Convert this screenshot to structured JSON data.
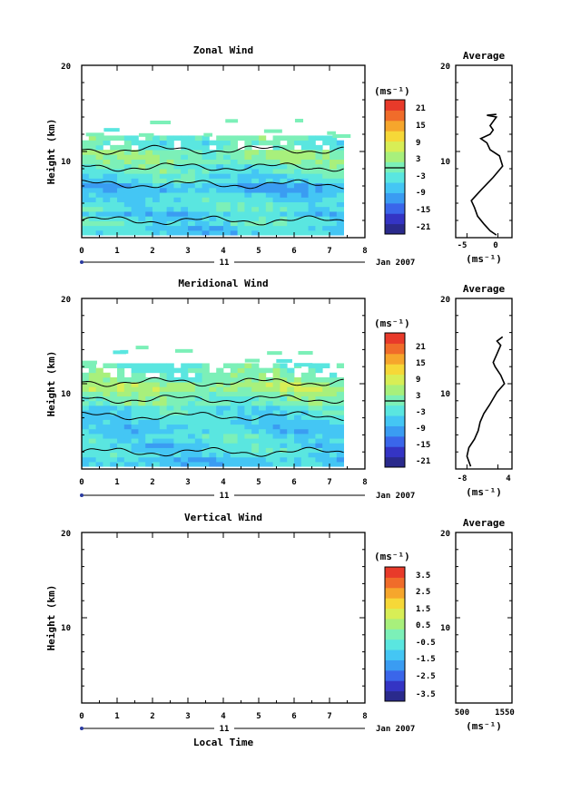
{
  "palette": [
    "#2a2a8c",
    "#3434c4",
    "#3a66ea",
    "#3a9cf2",
    "#44c6f4",
    "#5ae6e0",
    "#7cf0b8",
    "#a8f07c",
    "#d8ee56",
    "#f6d838",
    "#f6a62c",
    "#f06c2a",
    "#e83a2a"
  ],
  "contour_color": "#000000",
  "date_label": "Jan 2007",
  "day_label": "11",
  "x_axis_label": "Local Time",
  "panels": [
    {
      "title": "Zonal Wind",
      "ylabel": "Height (km)",
      "unit_label": "(ms⁻¹)",
      "colorbar_ticks": [
        "21",
        "15",
        "9",
        "3",
        "-3",
        "-9",
        "-15",
        "-21"
      ],
      "colorbar_marker": "3",
      "avg_title": "Average",
      "avg_unit": "(ms⁻¹)",
      "avg_xticks": [
        "-5",
        "0"
      ]
    },
    {
      "title": "Meridional Wind",
      "ylabel": "Height (km)",
      "unit_label": "(ms⁻¹)",
      "colorbar_ticks": [
        "21",
        "15",
        "9",
        "3",
        "-3",
        "-9",
        "-15",
        "-21"
      ],
      "colorbar_marker": "3",
      "avg_title": "Average",
      "avg_unit": "(ms⁻¹)",
      "avg_xticks": [
        "-8",
        "4"
      ]
    },
    {
      "title": "Vertical Wind",
      "ylabel": "Height (km)",
      "unit_label": "(ms⁻¹)",
      "colorbar_ticks": [
        "3.5",
        "2.5",
        "1.5",
        "0.5",
        "-0.5",
        "-1.5",
        "-2.5",
        "-3.5"
      ],
      "avg_title": "Average",
      "avg_unit": "(ms⁻¹)",
      "avg_xticks": [
        "500",
        "1550"
      ]
    }
  ],
  "chart_data": [
    {
      "type": "heatmap",
      "title": "Zonal Wind",
      "xlabel": "",
      "ylabel": "Height (km)",
      "xlim": [
        0,
        8
      ],
      "ylim": [
        0,
        20
      ],
      "xticks": [
        "0",
        "1",
        "2",
        "3",
        "4",
        "5",
        "6",
        "7",
        "8"
      ],
      "yticks": [
        "20",
        "10"
      ],
      "x_extent": [
        0,
        7.4
      ],
      "y_extent": [
        0.3,
        11.5
      ],
      "y_levels": [
        0.5,
        1.5,
        2.5,
        3.5,
        4.5,
        5.5,
        6.5,
        7.5,
        8.5,
        9.5,
        10.5,
        11.5
      ],
      "values": [
        -6,
        -4,
        -7,
        -3,
        -5,
        -8,
        -4,
        -2,
        0,
        1,
        -3,
        -1
      ],
      "colorbar_range": [
        -24,
        24
      ],
      "average_profile": {
        "xlim": [
          -7,
          2
        ],
        "ylim": [
          0,
          20
        ],
        "x": [
          -0.5,
          -1.5,
          -2.5,
          -3.5,
          -4,
          -4.5,
          -3,
          -1,
          0.5,
          0,
          -1.5,
          -2,
          -3,
          -1.5,
          -1,
          -1.5,
          -1,
          -0.5,
          -2,
          -0.5
        ],
        "y": [
          0.3,
          0.8,
          1.6,
          2.5,
          3.5,
          4.3,
          5.5,
          7,
          8.3,
          9.5,
          10.2,
          11,
          11.5,
          12,
          12.5,
          13,
          13.5,
          14,
          14.2,
          14.3
        ]
      }
    },
    {
      "type": "heatmap",
      "title": "Meridional Wind",
      "xlabel": "",
      "ylabel": "Height (km)",
      "xlim": [
        0,
        8
      ],
      "ylim": [
        0,
        20
      ],
      "xticks": [
        "0",
        "1",
        "2",
        "3",
        "4",
        "5",
        "6",
        "7",
        "8"
      ],
      "yticks": [
        "20",
        "10"
      ],
      "x_extent": [
        0,
        7.4
      ],
      "y_extent": [
        0.3,
        12
      ],
      "y_levels": [
        0.5,
        1.5,
        2.5,
        3.5,
        4.5,
        5.5,
        6.5,
        7.5,
        8.5,
        9.5,
        10.5,
        11.5
      ],
      "values": [
        -7,
        -5,
        -6,
        -4,
        -6,
        -5,
        -4,
        -1,
        1,
        3,
        0,
        -1
      ],
      "colorbar_range": [
        -24,
        24
      ],
      "average_profile": {
        "xlim": [
          -10,
          5
        ],
        "ylim": [
          0,
          20
        ],
        "x": [
          -6,
          -7,
          -6.5,
          -5,
          -4,
          -3.5,
          -2.5,
          -1,
          1,
          3,
          2,
          0.5,
          0,
          0.5,
          1,
          1.5,
          2,
          1,
          2.5
        ],
        "y": [
          0.3,
          1.5,
          2.5,
          3.5,
          4.5,
          5.5,
          6.5,
          7.5,
          9,
          10,
          11,
          12,
          12.5,
          13,
          13.5,
          14,
          14.5,
          15,
          15.5
        ]
      }
    },
    {
      "type": "heatmap",
      "title": "Vertical Wind",
      "xlabel": "Local Time",
      "ylabel": "Height (km)",
      "xlim": [
        0,
        8
      ],
      "ylim": [
        0,
        20
      ],
      "xticks": [
        "0",
        "1",
        "2",
        "3",
        "4",
        "5",
        "6",
        "7",
        "8"
      ],
      "yticks": [
        "20",
        "10"
      ],
      "colorbar_range": [
        -4,
        4
      ],
      "average_profile": {
        "xlim": [
          500,
          1550
        ],
        "ylim": [
          0,
          20
        ],
        "x": [],
        "y": []
      }
    }
  ]
}
